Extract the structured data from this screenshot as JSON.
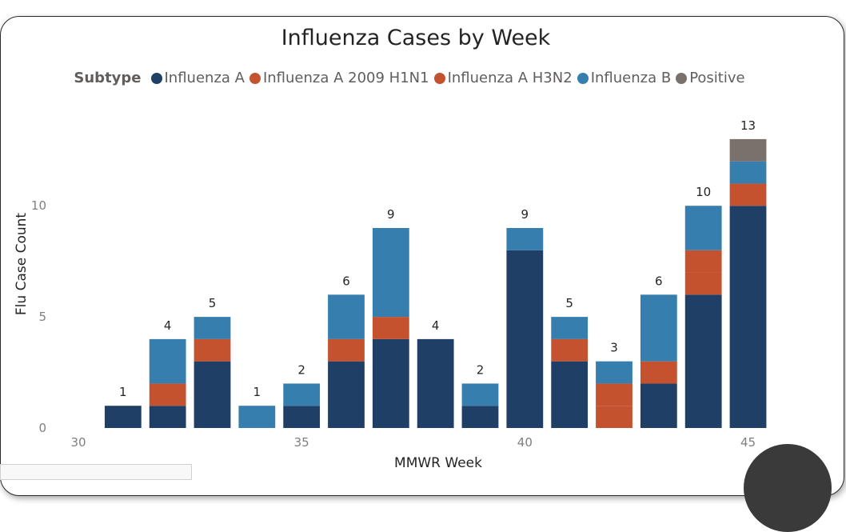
{
  "chart_data": {
    "type": "bar",
    "stacked": true,
    "title": "Influenza Cases by Week",
    "xlabel": "MMWR Week",
    "ylabel": "Flu Case Count",
    "legend_title": "Subtype",
    "legend_position": "top-center",
    "xlim": [
      30,
      45.6
    ],
    "ylim": [
      0,
      13.5
    ],
    "x_ticks": [
      30,
      35,
      40,
      45
    ],
    "y_ticks": [
      0,
      5,
      10
    ],
    "grid": false,
    "x": [
      31,
      32,
      33,
      34,
      35,
      36,
      37,
      38,
      39,
      40,
      41,
      42,
      43,
      44,
      45
    ],
    "series": [
      {
        "name": "Influenza A",
        "color": "#1f3f66",
        "values": [
          1,
          1,
          3,
          0,
          1,
          3,
          4,
          4,
          1,
          8,
          3,
          0,
          2,
          6,
          10
        ]
      },
      {
        "name": "Influenza A 2009 H1N1",
        "color": "#c4522f",
        "values": [
          0,
          1,
          0,
          0,
          0,
          0,
          0,
          0,
          0,
          0,
          0,
          1,
          0,
          1,
          0
        ]
      },
      {
        "name": "Influenza A H3N2",
        "color": "#c4522f",
        "values": [
          0,
          0,
          1,
          0,
          0,
          1,
          1,
          0,
          0,
          0,
          1,
          1,
          1,
          1,
          1
        ]
      },
      {
        "name": "Influenza B",
        "color": "#367ead",
        "values": [
          0,
          2,
          1,
          1,
          1,
          2,
          4,
          0,
          1,
          1,
          1,
          1,
          3,
          2,
          1
        ]
      },
      {
        "name": "Positive",
        "color": "#7b716c",
        "values": [
          0,
          0,
          0,
          0,
          0,
          0,
          0,
          0,
          0,
          0,
          0,
          0,
          0,
          0,
          1
        ]
      }
    ],
    "totals": [
      1,
      4,
      5,
      1,
      2,
      6,
      9,
      4,
      2,
      9,
      5,
      3,
      6,
      10,
      13
    ]
  }
}
